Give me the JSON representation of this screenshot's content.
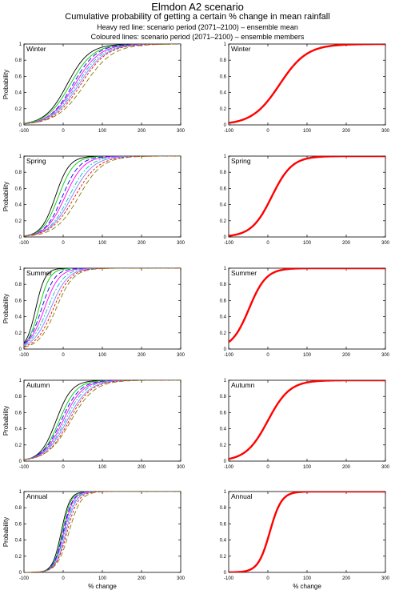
{
  "title": "Elmdon A2 scenario",
  "subtitle": "Cumulative probability of getting a certain % change in mean rainfall",
  "legend_line1": "Heavy red line: scenario period (2071–2100) – ensemble mean",
  "legend_line2": "Coloured lines: scenario period (2071–2100) – ensemble members",
  "colors": {
    "ensemble_mean": "#ff0000",
    "members": [
      "#000000",
      "#00cc00",
      "#0000ff",
      "#ff00ff",
      "#00bfbf",
      "#7f7fff",
      "#ff0000",
      "#7f7f00"
    ]
  },
  "chart_data": [
    {
      "type": "line",
      "panel": "members",
      "season": "Winter",
      "ylabel": "Probability",
      "xlabel": "",
      "xlim": [
        -100,
        300
      ],
      "ylim": [
        0,
        1
      ],
      "xticks": [
        -100,
        0,
        100,
        200,
        300
      ],
      "yticks": [
        0,
        0.2,
        0.4,
        0.6,
        0.8,
        1
      ],
      "series": [
        {
          "median": 10,
          "scale": 28
        },
        {
          "median": 18,
          "scale": 30
        },
        {
          "median": 25,
          "scale": 30
        },
        {
          "median": 30,
          "scale": 32
        },
        {
          "median": 35,
          "scale": 33
        },
        {
          "median": 40,
          "scale": 34
        },
        {
          "median": 45,
          "scale": 34
        },
        {
          "median": 55,
          "scale": 36
        }
      ]
    },
    {
      "type": "line",
      "panel": "mean",
      "season": "Winter",
      "ylabel": "",
      "xlabel": "",
      "xlim": [
        -100,
        300
      ],
      "ylim": [
        0,
        1
      ],
      "xticks": [
        -100,
        0,
        100,
        200,
        300
      ],
      "yticks": [
        0,
        0.2,
        0.4,
        0.6,
        0.8,
        1
      ],
      "series": [
        {
          "median": 30,
          "scale": 35
        }
      ]
    },
    {
      "type": "line",
      "panel": "members",
      "season": "Spring",
      "ylabel": "Probability",
      "xlabel": "",
      "xlim": [
        -100,
        300
      ],
      "ylim": [
        0,
        1
      ],
      "xticks": [
        -100,
        0,
        100,
        200,
        300
      ],
      "yticks": [
        0,
        0.2,
        0.4,
        0.6,
        0.8,
        1
      ],
      "series": [
        {
          "median": -20,
          "scale": 18
        },
        {
          "median": -12,
          "scale": 20
        },
        {
          "median": -2,
          "scale": 22
        },
        {
          "median": 5,
          "scale": 24
        },
        {
          "median": 15,
          "scale": 26
        },
        {
          "median": 22,
          "scale": 28
        },
        {
          "median": 30,
          "scale": 30
        },
        {
          "median": 40,
          "scale": 30
        }
      ]
    },
    {
      "type": "line",
      "panel": "mean",
      "season": "Spring",
      "ylabel": "",
      "xlabel": "",
      "xlim": [
        -100,
        300
      ],
      "ylim": [
        0,
        1
      ],
      "xticks": [
        -100,
        0,
        100,
        200,
        300
      ],
      "yticks": [
        0,
        0.2,
        0.4,
        0.6,
        0.8,
        1
      ],
      "series": [
        {
          "median": 10,
          "scale": 26
        }
      ]
    },
    {
      "type": "line",
      "panel": "members",
      "season": "Summer",
      "ylabel": "Probability",
      "xlabel": "",
      "xlim": [
        -100,
        300
      ],
      "ylim": [
        0,
        1
      ],
      "xticks": [
        -100,
        0,
        100,
        200,
        300
      ],
      "yticks": [
        0,
        0.2,
        0.4,
        0.6,
        0.8,
        1
      ],
      "series": [
        {
          "median": -70,
          "scale": 12
        },
        {
          "median": -62,
          "scale": 14
        },
        {
          "median": -55,
          "scale": 17
        },
        {
          "median": -48,
          "scale": 19
        },
        {
          "median": -40,
          "scale": 21
        },
        {
          "median": -32,
          "scale": 22
        },
        {
          "median": -25,
          "scale": 22
        },
        {
          "median": -18,
          "scale": 22
        }
      ]
    },
    {
      "type": "line",
      "panel": "mean",
      "season": "Summer",
      "ylabel": "",
      "xlabel": "",
      "xlim": [
        -100,
        300
      ],
      "ylim": [
        0,
        1
      ],
      "xticks": [
        -100,
        0,
        100,
        200,
        300
      ],
      "yticks": [
        0,
        0.2,
        0.4,
        0.6,
        0.8,
        1
      ],
      "series": [
        {
          "median": -48,
          "scale": 22
        }
      ]
    },
    {
      "type": "line",
      "panel": "members",
      "season": "Autumn",
      "ylabel": "Probability",
      "xlabel": "",
      "xlim": [
        -100,
        300
      ],
      "ylim": [
        0,
        1
      ],
      "xticks": [
        -100,
        0,
        100,
        200,
        300
      ],
      "yticks": [
        0,
        0.2,
        0.4,
        0.6,
        0.8,
        1
      ],
      "series": [
        {
          "median": -18,
          "scale": 20
        },
        {
          "median": -10,
          "scale": 22
        },
        {
          "median": -5,
          "scale": 24
        },
        {
          "median": 0,
          "scale": 25
        },
        {
          "median": 5,
          "scale": 26
        },
        {
          "median": 10,
          "scale": 28
        },
        {
          "median": 15,
          "scale": 28
        },
        {
          "median": 20,
          "scale": 30
        }
      ]
    },
    {
      "type": "line",
      "panel": "mean",
      "season": "Autumn",
      "ylabel": "",
      "xlabel": "",
      "xlim": [
        -100,
        300
      ],
      "ylim": [
        0,
        1
      ],
      "xticks": [
        -100,
        0,
        100,
        200,
        300
      ],
      "yticks": [
        0,
        0.2,
        0.4,
        0.6,
        0.8,
        1
      ],
      "series": [
        {
          "median": 0,
          "scale": 28
        }
      ]
    },
    {
      "type": "line",
      "panel": "members",
      "season": "Annual",
      "ylabel": "Probability",
      "xlabel": "% change",
      "xlim": [
        -100,
        300
      ],
      "ylim": [
        0,
        1
      ],
      "xticks": [
        -100,
        0,
        100,
        200,
        300
      ],
      "yticks": [
        0,
        0.2,
        0.4,
        0.6,
        0.8,
        1
      ],
      "series": [
        {
          "median": -5,
          "scale": 11
        },
        {
          "median": -2,
          "scale": 11
        },
        {
          "median": 0,
          "scale": 12
        },
        {
          "median": 2,
          "scale": 12
        },
        {
          "median": 4,
          "scale": 13
        },
        {
          "median": 7,
          "scale": 13
        },
        {
          "median": 10,
          "scale": 14
        },
        {
          "median": 15,
          "scale": 15
        }
      ]
    },
    {
      "type": "line",
      "panel": "mean",
      "season": "Annual",
      "ylabel": "",
      "xlabel": "% change",
      "xlim": [
        -100,
        300
      ],
      "ylim": [
        0,
        1
      ],
      "xticks": [
        -100,
        0,
        100,
        200,
        300
      ],
      "yticks": [
        0,
        0.2,
        0.4,
        0.6,
        0.8,
        1
      ],
      "series": [
        {
          "median": 5,
          "scale": 15
        }
      ]
    }
  ]
}
